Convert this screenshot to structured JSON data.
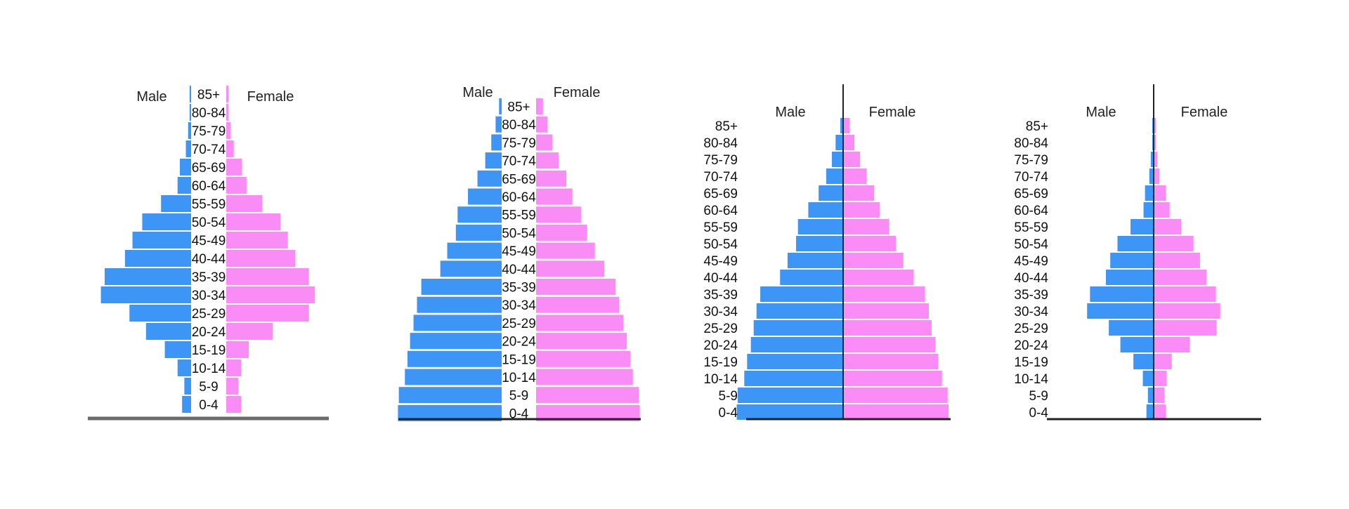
{
  "colors": {
    "male": "#3d96f5",
    "female": "#fa8cf5",
    "axis": "#6b6b6b",
    "axis_dark": "#222222",
    "text": "#111111"
  },
  "chart_data": [
    {
      "type": "bar",
      "orientation": "horizontal",
      "categories": [
        "0-4",
        "5-9",
        "10-14",
        "15-19",
        "20-24",
        "25-29",
        "30-34",
        "35-39",
        "40-44",
        "45-49",
        "50-54",
        "55-59",
        "60-64",
        "65-69",
        "70-74",
        "75-79",
        "80-84",
        "85+"
      ],
      "series": [
        {
          "name": "Male",
          "values": [
            1.2,
            0.9,
            1.8,
            3.5,
            6.0,
            8.2,
            12.0,
            11.5,
            8.8,
            7.8,
            6.5,
            4.0,
            1.8,
            1.5,
            0.7,
            0.4,
            0.2,
            0.2
          ]
        },
        {
          "name": "Female",
          "values": [
            2.0,
            1.6,
            2.0,
            3.0,
            6.2,
            11.0,
            11.8,
            11.0,
            9.2,
            8.2,
            7.2,
            4.8,
            2.7,
            2.1,
            1.0,
            0.6,
            0.3,
            0.3
          ]
        }
      ],
      "title": "",
      "xlabel": "",
      "ylabel": "",
      "legend": "labels-above"
    },
    {
      "type": "bar",
      "orientation": "horizontal",
      "categories": [
        "0-4",
        "5-9",
        "10-14",
        "15-19",
        "20-24",
        "25-29",
        "30-34",
        "35-39",
        "40-44",
        "45-49",
        "50-54",
        "55-59",
        "60-64",
        "65-69",
        "70-74",
        "75-79",
        "80-84",
        "85+"
      ],
      "series": [
        {
          "name": "Male",
          "values": [
            12.0,
            11.9,
            11.2,
            10.9,
            10.6,
            10.2,
            9.8,
            9.3,
            7.1,
            6.3,
            5.3,
            5.1,
            3.9,
            2.8,
            1.9,
            1.2,
            0.7,
            0.3
          ]
        },
        {
          "name": "Female",
          "values": [
            12.0,
            11.9,
            11.2,
            10.9,
            10.5,
            10.1,
            9.6,
            9.2,
            7.9,
            6.8,
            5.9,
            5.2,
            4.2,
            3.5,
            2.6,
            1.9,
            1.3,
            0.8
          ]
        }
      ],
      "title": "",
      "xlabel": "",
      "ylabel": "",
      "legend": "labels-above"
    },
    {
      "type": "bar",
      "orientation": "horizontal",
      "categories": [
        "0-4",
        "5-9",
        "10-14",
        "15-19",
        "20-24",
        "25-29",
        "30-34",
        "35-39",
        "40-44",
        "45-49",
        "50-54",
        "55-59",
        "60-64",
        "65-69",
        "70-74",
        "75-79",
        "80-84",
        "85+"
      ],
      "series": [
        {
          "name": "Male",
          "values": [
            11.3,
            11.2,
            10.5,
            10.2,
            9.8,
            9.5,
            9.2,
            8.8,
            6.7,
            5.9,
            5.0,
            4.8,
            3.7,
            2.6,
            1.8,
            1.2,
            0.8,
            0.3
          ]
        },
        {
          "name": "Female",
          "values": [
            11.2,
            11.1,
            10.5,
            10.1,
            9.8,
            9.4,
            9.1,
            8.7,
            7.5,
            6.4,
            5.6,
            4.9,
            3.9,
            3.3,
            2.5,
            1.8,
            1.2,
            0.7
          ]
        }
      ],
      "title": "",
      "xlabel": "",
      "ylabel": "",
      "legend": "labels-above"
    },
    {
      "type": "bar",
      "orientation": "horizontal",
      "categories": [
        "0-4",
        "5-9",
        "10-14",
        "15-19",
        "20-24",
        "25-29",
        "30-34",
        "35-39",
        "40-44",
        "45-49",
        "50-54",
        "55-59",
        "60-64",
        "65-69",
        "70-74",
        "75-79",
        "80-84",
        "85+"
      ],
      "series": [
        {
          "name": "Male",
          "values": [
            1.0,
            0.8,
            1.5,
            2.8,
            4.6,
            6.2,
            9.2,
            8.8,
            6.6,
            6.0,
            5.0,
            3.2,
            1.4,
            1.2,
            0.6,
            0.4,
            0.2,
            0.2
          ]
        },
        {
          "name": "Female",
          "values": [
            1.7,
            1.5,
            1.8,
            2.5,
            5.0,
            8.7,
            9.2,
            8.6,
            7.3,
            6.4,
            5.5,
            3.8,
            2.2,
            1.7,
            0.8,
            0.5,
            0.3,
            0.3
          ]
        }
      ],
      "title": "",
      "xlabel": "",
      "ylabel": "",
      "legend": "labels-above"
    }
  ]
}
